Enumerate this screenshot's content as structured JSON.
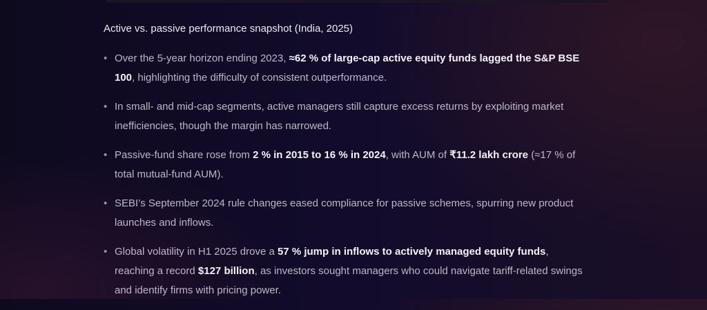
{
  "heading": "Active vs. passive performance snapshot (India, 2025)",
  "bullets": [
    [
      {
        "t": "Over the 5-year horizon ending 2023, "
      },
      {
        "t": "≈62 % of large-cap active equity funds lagged the S&P BSE 100",
        "b": true
      },
      {
        "t": ", highlighting the difficulty of consistent outperformance."
      }
    ],
    [
      {
        "t": "In small- and mid-cap segments, active managers still capture excess returns by exploiting market inefficiencies, though the margin has narrowed."
      }
    ],
    [
      {
        "t": "Passive-fund share rose from "
      },
      {
        "t": "2 % in 2015 to 16 % in 2024",
        "b": true
      },
      {
        "t": ", with AUM of "
      },
      {
        "t": "₹11.2 lakh crore",
        "b": true
      },
      {
        "t": " (≈17 % of total mutual-fund AUM)."
      }
    ],
    [
      {
        "t": "SEBI’s September 2024 rule changes eased compliance for passive schemes, spurring new product launches and inflows."
      }
    ],
    [
      {
        "t": "Global volatility in H1 2025 drove a "
      },
      {
        "t": "57 % jump in inflows to actively managed equity funds",
        "b": true
      },
      {
        "t": ", reaching a record "
      },
      {
        "t": "$127 billion",
        "b": true
      },
      {
        "t": ", as investors sought managers who could navigate tariff-related swings and identify firms with pricing power."
      }
    ]
  ]
}
